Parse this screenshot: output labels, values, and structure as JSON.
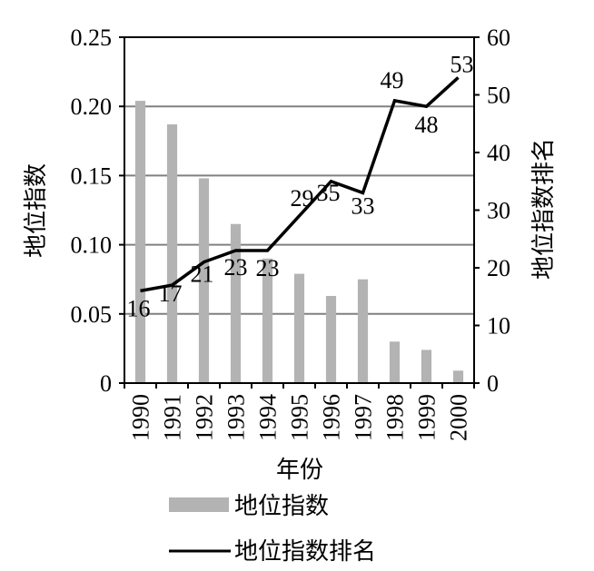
{
  "chart_data": {
    "type": "bar",
    "x": [
      "1990",
      "1991",
      "1992",
      "1993",
      "1994",
      "1995",
      "1996",
      "1997",
      "1998",
      "1999",
      "2000"
    ],
    "series": [
      {
        "name": "地位指数",
        "type": "bar",
        "axis": "left",
        "color": "#b3b3b3",
        "values": [
          0.204,
          0.187,
          0.148,
          0.115,
          0.09,
          0.079,
          0.063,
          0.075,
          0.03,
          0.024,
          0.009
        ]
      },
      {
        "name": "地位指数排名",
        "type": "line",
        "axis": "right",
        "color": "#000000",
        "values": [
          16,
          17,
          21,
          23,
          23,
          29,
          35,
          33,
          49,
          48,
          53
        ],
        "data_labels": [
          "16",
          "17",
          "21",
          "23",
          "23",
          "29",
          "35",
          "33",
          "49",
          "48",
          "53"
        ]
      }
    ],
    "xlabel": "年份",
    "ylabel_left": "地位指数",
    "ylabel_right": "地位指数排名",
    "ylim_left": [
      0,
      0.25
    ],
    "ylim_right": [
      0,
      60
    ],
    "yticks_left": [
      "0",
      "0.05",
      "0.10",
      "0.15",
      "0.20",
      "0.25"
    ],
    "yticks_right": [
      "0",
      "10",
      "20",
      "30",
      "40",
      "50",
      "60"
    ],
    "grid": true,
    "legend_position": "bottom",
    "gridline_color": "#808080"
  }
}
